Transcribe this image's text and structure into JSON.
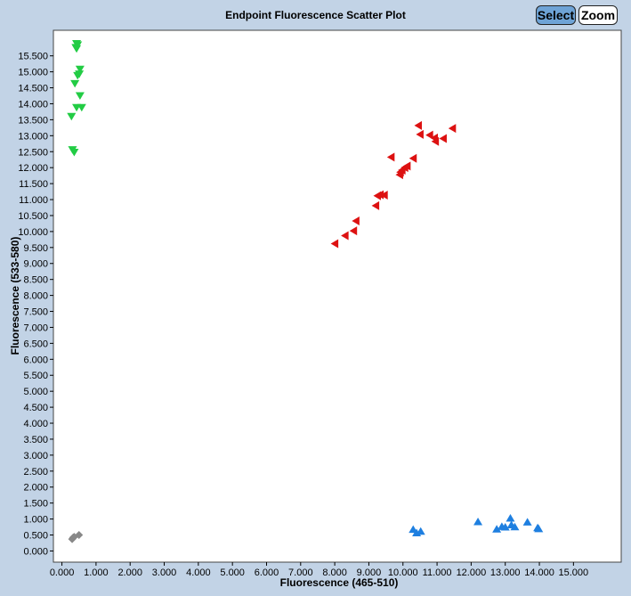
{
  "toolbar": {
    "select_label": "Select",
    "zoom_label": "Zoom"
  },
  "chart_data": {
    "type": "scatter",
    "title": "Endpoint Fluorescence Scatter Plot",
    "xlabel": "Fluorescence (465-510)",
    "ylabel": "Fluorescence (533-580)",
    "xlim": [
      -0.25,
      16.4
    ],
    "ylim": [
      -0.35,
      16.3
    ],
    "xticks": [
      "0.000",
      "1.000",
      "2.000",
      "3.000",
      "4.000",
      "5.000",
      "6.000",
      "7.000",
      "8.000",
      "9.000",
      "10.000",
      "11.000",
      "12.000",
      "13.000",
      "14.000",
      "15.000"
    ],
    "yticks": [
      "0.000",
      "0.500",
      "1.000",
      "1.500",
      "2.000",
      "2.500",
      "3.000",
      "3.500",
      "4.000",
      "4.500",
      "5.000",
      "5.500",
      "6.000",
      "6.500",
      "7.000",
      "7.500",
      "8.000",
      "8.500",
      "9.000",
      "9.500",
      "10.000",
      "10.500",
      "11.000",
      "11.500",
      "12.000",
      "12.500",
      "13.000",
      "13.500",
      "14.000",
      "14.500",
      "15.000",
      "15.500"
    ],
    "grid": false,
    "series": [
      {
        "marker": "triangle-down",
        "color": "#22cc44",
        "points": [
          {
            "x": 0.43,
            "y": 15.88
          },
          {
            "x": 0.46,
            "y": 15.84
          },
          {
            "x": 0.41,
            "y": 15.76
          },
          {
            "x": 0.43,
            "y": 15.72
          },
          {
            "x": 0.53,
            "y": 15.08
          },
          {
            "x": 0.51,
            "y": 14.93
          },
          {
            "x": 0.46,
            "y": 14.88
          },
          {
            "x": 0.38,
            "y": 14.63
          },
          {
            "x": 0.53,
            "y": 14.25
          },
          {
            "x": 0.43,
            "y": 13.88
          },
          {
            "x": 0.58,
            "y": 13.88
          },
          {
            "x": 0.28,
            "y": 13.6
          },
          {
            "x": 0.31,
            "y": 12.56
          },
          {
            "x": 0.36,
            "y": 12.48
          }
        ]
      },
      {
        "marker": "triangle-left",
        "color": "#dd1111",
        "points": [
          {
            "x": 8.0,
            "y": 9.62
          },
          {
            "x": 8.3,
            "y": 9.87
          },
          {
            "x": 8.55,
            "y": 10.02
          },
          {
            "x": 8.62,
            "y": 10.33
          },
          {
            "x": 9.2,
            "y": 10.81
          },
          {
            "x": 9.25,
            "y": 11.12
          },
          {
            "x": 9.33,
            "y": 11.15
          },
          {
            "x": 9.45,
            "y": 11.14
          },
          {
            "x": 9.65,
            "y": 12.33
          },
          {
            "x": 9.9,
            "y": 11.78
          },
          {
            "x": 9.92,
            "y": 11.86
          },
          {
            "x": 9.97,
            "y": 11.92
          },
          {
            "x": 10.05,
            "y": 12.0
          },
          {
            "x": 10.12,
            "y": 12.05
          },
          {
            "x": 10.3,
            "y": 12.29
          },
          {
            "x": 10.45,
            "y": 13.32
          },
          {
            "x": 10.5,
            "y": 13.04
          },
          {
            "x": 10.78,
            "y": 13.02
          },
          {
            "x": 10.92,
            "y": 12.93
          },
          {
            "x": 10.95,
            "y": 12.82
          },
          {
            "x": 11.18,
            "y": 12.91
          },
          {
            "x": 11.45,
            "y": 13.23
          }
        ]
      },
      {
        "marker": "triangle-up",
        "color": "#1e7fe0",
        "points": [
          {
            "x": 10.3,
            "y": 0.68
          },
          {
            "x": 10.4,
            "y": 0.57
          },
          {
            "x": 10.52,
            "y": 0.62
          },
          {
            "x": 12.2,
            "y": 0.92
          },
          {
            "x": 12.75,
            "y": 0.69
          },
          {
            "x": 12.9,
            "y": 0.77
          },
          {
            "x": 13.0,
            "y": 0.75
          },
          {
            "x": 13.15,
            "y": 1.03
          },
          {
            "x": 13.18,
            "y": 0.82
          },
          {
            "x": 13.28,
            "y": 0.76
          },
          {
            "x": 13.65,
            "y": 0.91
          },
          {
            "x": 13.95,
            "y": 0.73
          },
          {
            "x": 13.98,
            "y": 0.7
          }
        ]
      },
      {
        "marker": "diamond",
        "color": "#888888",
        "points": [
          {
            "x": 0.3,
            "y": 0.37
          },
          {
            "x": 0.33,
            "y": 0.42
          },
          {
            "x": 0.36,
            "y": 0.44
          },
          {
            "x": 0.5,
            "y": 0.5
          }
        ]
      }
    ]
  }
}
